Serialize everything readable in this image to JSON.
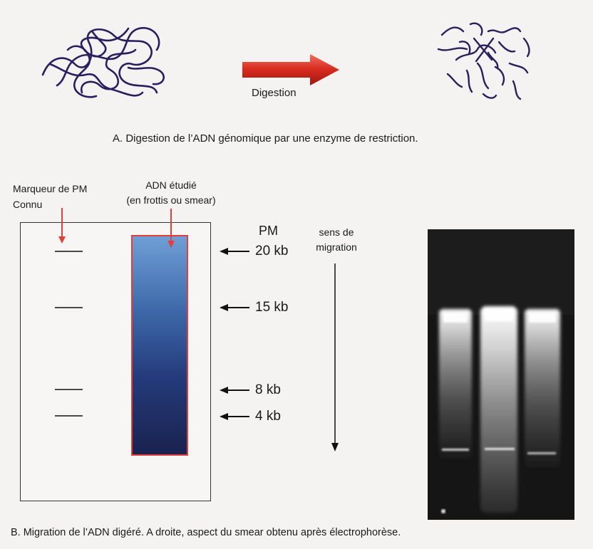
{
  "section_a": {
    "arrow_label": "Digestion",
    "caption": "A. Digestion de l’ADN génomique par une enzyme de restriction."
  },
  "section_b": {
    "marker_label_line1": "Marqueur de PM",
    "marker_label_line2": "Connu",
    "dna_label_line1": "ADN étudié",
    "dna_label_line2": "(en frottis ou smear)",
    "pm_header": "PM",
    "migration_label_line1": "sens de",
    "migration_label_line2": "migration",
    "bands": [
      {
        "label": "20 kb"
      },
      {
        "label": "15 kb"
      },
      {
        "label": "8 kb"
      },
      {
        "label": "4 kb"
      }
    ],
    "caption": "B. Migration  de l’ADN digéré. A droite, aspect du smear obtenu après électrophorèse."
  },
  "colors": {
    "dna_strand": "#2a1f5e",
    "digestion_arrow": "#d62a1e",
    "pointer_arrow": "#e0403a",
    "smear_top": "#6f9fd6",
    "smear_bottom": "#1a2350",
    "smear_border": "#e0403a"
  }
}
